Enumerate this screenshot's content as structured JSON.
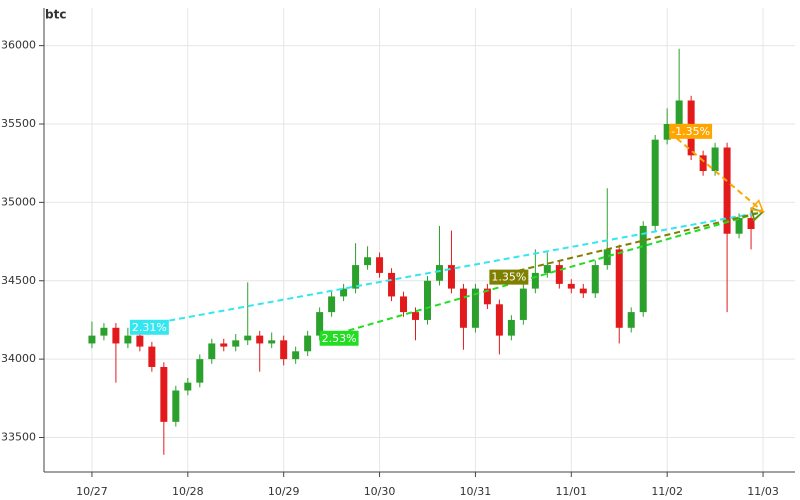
{
  "chart_data": {
    "type": "candlestick",
    "title": "btc",
    "x": [
      0,
      3,
      6,
      9,
      12,
      15,
      18,
      21,
      24,
      27,
      30,
      33,
      36,
      39,
      42,
      45,
      48,
      51,
      54,
      57,
      60,
      63,
      66,
      69,
      72,
      75,
      78,
      81,
      84,
      87,
      90,
      93,
      96,
      99,
      102,
      105,
      108,
      111,
      114,
      117,
      120,
      123,
      126,
      129,
      132,
      135,
      138,
      141,
      144,
      147,
      150,
      153,
      156,
      159,
      162,
      165
    ],
    "open": [
      34100,
      34150,
      34200,
      34100,
      34150,
      34080,
      33950,
      33600,
      33800,
      33850,
      34000,
      34100,
      34080,
      34120,
      34150,
      34100,
      34120,
      34000,
      34050,
      34150,
      34300,
      34400,
      34450,
      34600,
      34650,
      34550,
      34400,
      34300,
      34250,
      34500,
      34600,
      34450,
      34200,
      34450,
      34350,
      34150,
      34250,
      34450,
      34550,
      34600,
      34480,
      34450,
      34420,
      34600,
      34700,
      34200,
      34300,
      34850,
      35400,
      35500,
      35650,
      35300,
      35200,
      35350,
      34800,
      34900
    ],
    "high": [
      34240,
      34230,
      34230,
      34200,
      34190,
      34110,
      33980,
      33830,
      33880,
      34030,
      34130,
      34130,
      34160,
      34490,
      34180,
      34170,
      34150,
      34080,
      34180,
      34330,
      34430,
      34480,
      34740,
      34720,
      34680,
      34580,
      34430,
      34330,
      34530,
      34850,
      34820,
      34480,
      34480,
      34480,
      34380,
      34280,
      34480,
      34700,
      34680,
      34630,
      34510,
      34480,
      34630,
      35090,
      34730,
      34330,
      34880,
      35430,
      35600,
      35980,
      35680,
      35330,
      35380,
      35380,
      34930,
      34950
    ],
    "low": [
      34070,
      34120,
      33850,
      34070,
      34050,
      33920,
      33390,
      33570,
      33770,
      33820,
      33970,
      34050,
      34050,
      34090,
      33920,
      34070,
      33960,
      33970,
      34020,
      34120,
      34270,
      34370,
      34420,
      34570,
      34520,
      34370,
      34270,
      34120,
      34220,
      34470,
      34420,
      34060,
      34170,
      34320,
      34030,
      34120,
      34220,
      34420,
      34520,
      34450,
      34420,
      34390,
      34390,
      34570,
      34100,
      34170,
      34270,
      34820,
      35370,
      35470,
      35270,
      35170,
      35170,
      34300,
      34770,
      34700
    ],
    "close": [
      34150,
      34200,
      34100,
      34150,
      34080,
      33950,
      33600,
      33800,
      33850,
      34000,
      34100,
      34080,
      34120,
      34150,
      34100,
      34120,
      34000,
      34050,
      34150,
      34300,
      34400,
      34450,
      34600,
      34650,
      34550,
      34400,
      34300,
      34250,
      34500,
      34600,
      34450,
      34200,
      34450,
      34350,
      34150,
      34250,
      34450,
      34550,
      34600,
      34480,
      34450,
      34420,
      34600,
      34700,
      34200,
      34300,
      34850,
      35400,
      35500,
      35650,
      35300,
      35200,
      35350,
      34800,
      34900,
      34830
    ],
    "up_color": "#2ca02c",
    "down_color": "#e31a1c",
    "xlim": [
      -12,
      176
    ],
    "ylim": [
      33280,
      36240
    ],
    "xticks": [
      {
        "value": 0,
        "label": "10/27"
      },
      {
        "value": 24,
        "label": "10/28"
      },
      {
        "value": 48,
        "label": "10/29"
      },
      {
        "value": 72,
        "label": "10/30"
      },
      {
        "value": 96,
        "label": "10/31"
      },
      {
        "value": 120,
        "label": "11/01"
      },
      {
        "value": 144,
        "label": "11/02"
      },
      {
        "value": 168,
        "label": "11/03"
      }
    ],
    "yticks": [
      33500,
      34000,
      34500,
      35000,
      35500,
      36000
    ],
    "grid": true,
    "annotations": [
      {
        "label": "2.31%",
        "color": "#33e6f0",
        "x1": 9.5,
        "y1": 34200,
        "x2": 168,
        "y2": 34940
      },
      {
        "label": "2.53%",
        "color": "#22dd22",
        "x1": 57,
        "y1": 34130,
        "x2": 168,
        "y2": 34940
      },
      {
        "label": "1.35%",
        "color": "#808000",
        "x1": 99.5,
        "y1": 34520,
        "x2": 168,
        "y2": 34940
      },
      {
        "label": "-1.35%",
        "color": "#ffa500",
        "x1": 144.5,
        "y1": 35450,
        "x2": 168,
        "y2": 34940
      }
    ]
  }
}
